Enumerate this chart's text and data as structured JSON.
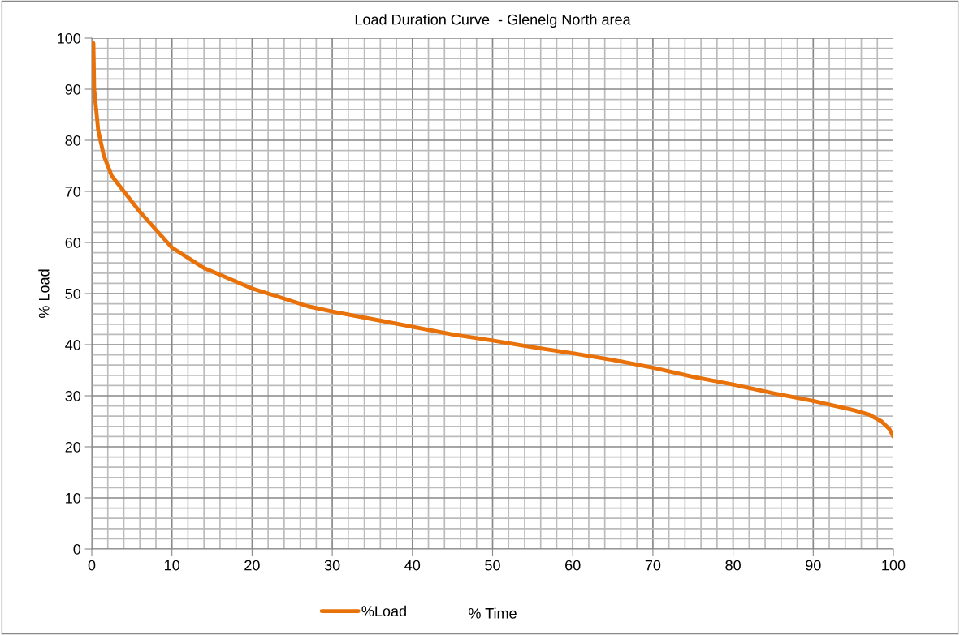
{
  "chart_data": {
    "type": "line",
    "title": "Load Duration Curve  - Glenelg North area",
    "xlabel": "% Time",
    "ylabel": "% Load",
    "x": [
      0.2,
      0.3,
      0.8,
      1.5,
      2.5,
      4,
      6,
      8,
      10,
      12,
      14,
      17,
      20,
      24,
      27,
      30,
      35,
      40,
      45,
      50,
      55,
      60,
      65,
      70,
      75,
      80,
      85,
      90,
      95,
      97,
      98.5,
      99.5,
      100
    ],
    "series": [
      {
        "name": "%Load",
        "color": "#e8710a",
        "values": [
          99,
          90,
          82,
          77,
          73,
          70,
          66,
          62.5,
          59,
          57,
          55,
          53,
          51,
          49,
          47.5,
          46.5,
          45,
          43.5,
          42,
          40.8,
          39.5,
          38.3,
          37,
          35.5,
          33.7,
          32.2,
          30.5,
          29,
          27.2,
          26.3,
          25,
          23.5,
          22
        ]
      }
    ],
    "xlim": [
      0,
      100
    ],
    "ylim": [
      0,
      100
    ],
    "xticks": [
      0,
      10,
      20,
      30,
      40,
      50,
      60,
      70,
      80,
      90,
      100
    ],
    "yticks": [
      0,
      10,
      20,
      30,
      40,
      50,
      60,
      70,
      80,
      90,
      100
    ],
    "grid": true,
    "legend": "bottom",
    "marker": "none",
    "line_style": "solid"
  }
}
